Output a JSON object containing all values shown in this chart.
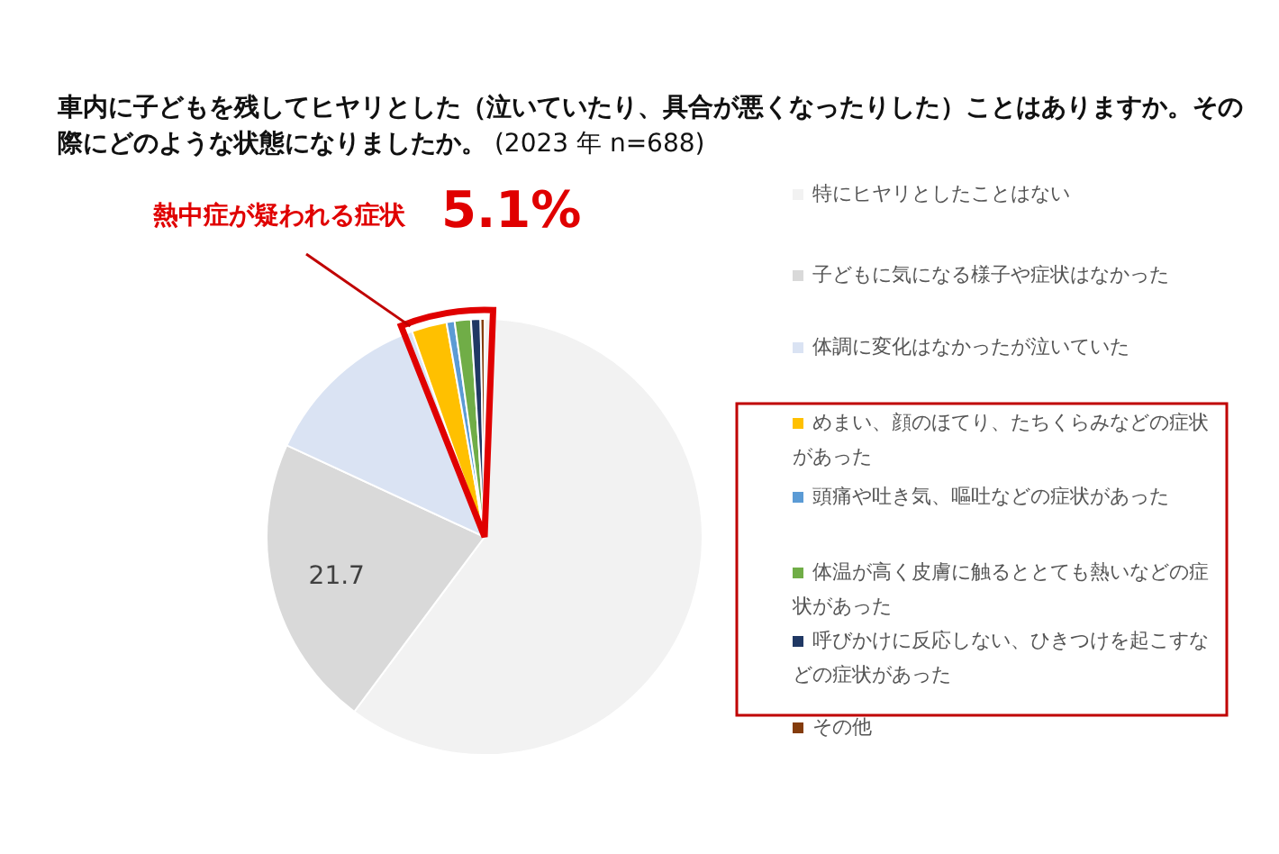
{
  "chart_data": {
    "type": "pie",
    "title": "車内に子どもを残してヒヤリとした（泣いていたり、具合が悪くなったりした）ことはありますか。その際にどのような状態になりましたか。",
    "subtitle": "(2023 年 n=688)",
    "categories": [
      "特にヒヤリとしたことはない",
      "子どもに気になる様子や症状はなかった",
      "体調に変化はなかったが泣いていた",
      "めまい、顔のほてり、たちくらみなどの症状があった",
      "頭痛や吐き気、嘔吐などの症状があった",
      "体温が高く皮膚に触るととても熱いなどの症状があった",
      "呼びかけに反応しない、ひきつけを起こすなどの症状があった",
      "その他"
    ],
    "values": [
      60.2,
      21.7,
      12.7,
      2.6,
      0.6,
      1.2,
      0.7,
      0.3
    ],
    "colors": [
      "#f2f2f2",
      "#d9d9d9",
      "#dae3f3",
      "#ffc000",
      "#5b9bd5",
      "#70ad47",
      "#203864",
      "#843c0c"
    ],
    "value_labels": [
      null,
      "21.7",
      null,
      null,
      null,
      null,
      null,
      null
    ],
    "annotations": [
      "熱中症が疑われる症状",
      "5.1%"
    ],
    "legend": "right"
  }
}
